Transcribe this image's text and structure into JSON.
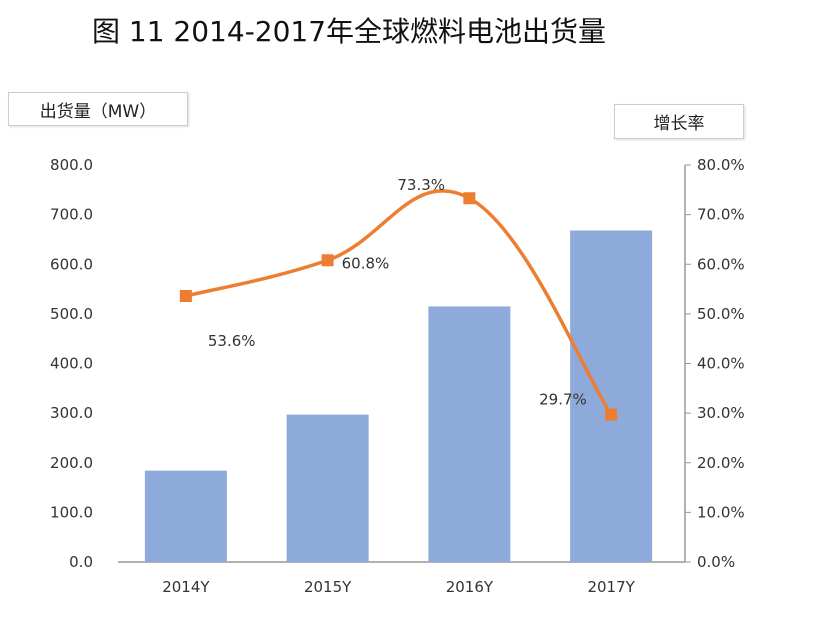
{
  "chart_data": {
    "type": "bar+line",
    "title": "图 11 2014-2017年全球燃料电池出货量",
    "categories": [
      "2014Y",
      "2015Y",
      "2016Y",
      "2017Y"
    ],
    "series": [
      {
        "name": "出货量（MW）",
        "type": "bar",
        "axis": "left",
        "values": [
          184,
          297,
          515,
          668
        ],
        "color": "#8eaadb"
      },
      {
        "name": "增长率",
        "type": "line",
        "axis": "right",
        "values": [
          53.6,
          60.8,
          73.3,
          29.7
        ],
        "labels": [
          "53.6%",
          "60.8%",
          "73.3%",
          "29.7%"
        ],
        "color": "#ed7d31"
      }
    ],
    "ylabel": "出货量（MW）",
    "y2label": "增长率",
    "ylim": [
      0,
      800
    ],
    "y2lim": [
      0,
      80
    ],
    "yticks": [
      "0.0",
      "100.0",
      "200.0",
      "300.0",
      "400.0",
      "500.0",
      "600.0",
      "700.0",
      "800.0"
    ],
    "y2ticks": [
      "0.0%",
      "10.0%",
      "20.0%",
      "30.0%",
      "40.0%",
      "50.0%",
      "60.0%",
      "70.0%",
      "80.0%"
    ],
    "grid": false
  }
}
